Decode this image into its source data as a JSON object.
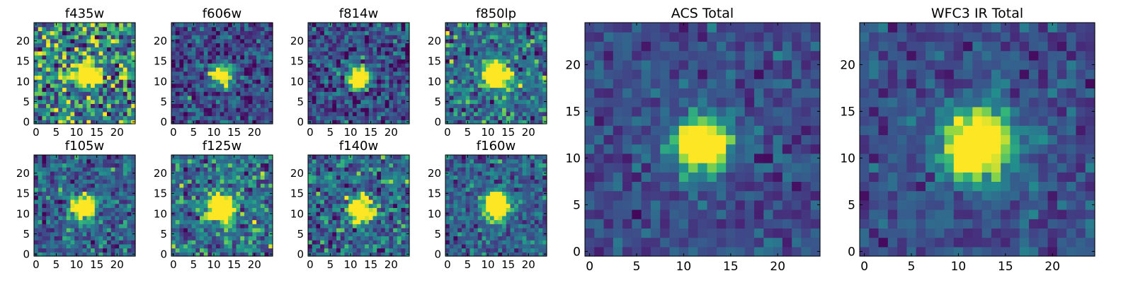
{
  "chart_data": [
    {
      "type": "heatmap",
      "title": "f435w",
      "xlim": [
        -0.5,
        24.5
      ],
      "ylim": [
        -0.5,
        24.5
      ],
      "xticks": [
        0,
        5,
        10,
        15,
        20
      ],
      "yticks": [
        0,
        5,
        10,
        15,
        20
      ],
      "xticklabels": [
        "0",
        "5",
        "10",
        "15",
        "20"
      ],
      "yticklabels": [
        "0",
        "5",
        "10",
        "15",
        "20"
      ],
      "source_center": [
        12,
        11.5
      ],
      "source_sigma": 2.4,
      "noise_level": 0.55,
      "background": 0.52,
      "colormap": "viridis"
    },
    {
      "type": "heatmap",
      "title": "f606w",
      "xlim": [
        -0.5,
        24.5
      ],
      "ylim": [
        -0.5,
        24.5
      ],
      "xticks": [
        0,
        5,
        10,
        15,
        20
      ],
      "yticks": [
        0,
        5,
        10,
        15,
        20
      ],
      "xticklabels": [
        "0",
        "5",
        "10",
        "15",
        "20"
      ],
      "yticklabels": [
        "0",
        "5",
        "10",
        "15",
        "20"
      ],
      "source_center": [
        12,
        11.5
      ],
      "source_sigma": 1.8,
      "noise_level": 0.35,
      "background": 0.28,
      "colormap": "viridis"
    },
    {
      "type": "heatmap",
      "title": "f814w",
      "xlim": [
        -0.5,
        24.5
      ],
      "ylim": [
        -0.5,
        24.5
      ],
      "xticks": [
        0,
        5,
        10,
        15,
        20
      ],
      "yticks": [
        0,
        5,
        10,
        15,
        20
      ],
      "xticklabels": [
        "0",
        "5",
        "10",
        "15",
        "20"
      ],
      "yticklabels": [
        "0",
        "5",
        "10",
        "15",
        "20"
      ],
      "source_center": [
        12,
        11
      ],
      "source_sigma": 1.9,
      "noise_level": 0.35,
      "background": 0.28,
      "colormap": "viridis"
    },
    {
      "type": "heatmap",
      "title": "f850lp",
      "xlim": [
        -0.5,
        24.5
      ],
      "ylim": [
        -0.5,
        24.5
      ],
      "xticks": [
        0,
        5,
        10,
        15,
        20
      ],
      "yticks": [
        0,
        5,
        10,
        15,
        20
      ],
      "xticklabels": [
        "0",
        "5",
        "10",
        "15",
        "20"
      ],
      "yticklabels": [
        "0",
        "5",
        "10",
        "15",
        "20"
      ],
      "source_center": [
        12,
        11.5
      ],
      "source_sigma": 2.2,
      "noise_level": 0.4,
      "background": 0.45,
      "colormap": "viridis"
    },
    {
      "type": "heatmap",
      "title": "f105w",
      "xlim": [
        -0.5,
        24.5
      ],
      "ylim": [
        -0.5,
        24.5
      ],
      "xticks": [
        0,
        5,
        10,
        15,
        20
      ],
      "yticks": [
        0,
        5,
        10,
        15,
        20
      ],
      "xticklabels": [
        "0",
        "5",
        "10",
        "15",
        "20"
      ],
      "yticklabels": [
        "0",
        "5",
        "10",
        "15",
        "20"
      ],
      "source_center": [
        12,
        11.5
      ],
      "source_sigma": 2.0,
      "noise_level": 0.35,
      "background": 0.38,
      "colormap": "viridis"
    },
    {
      "type": "heatmap",
      "title": "f125w",
      "xlim": [
        -0.5,
        24.5
      ],
      "ylim": [
        -0.5,
        24.5
      ],
      "xticks": [
        0,
        5,
        10,
        15,
        20
      ],
      "yticks": [
        0,
        5,
        10,
        15,
        20
      ],
      "xticklabels": [
        "0",
        "5",
        "10",
        "15",
        "20"
      ],
      "yticklabels": [
        "0",
        "5",
        "10",
        "15",
        "20"
      ],
      "source_center": [
        12,
        11.5
      ],
      "source_sigma": 2.4,
      "noise_level": 0.4,
      "background": 0.45,
      "colormap": "viridis"
    },
    {
      "type": "heatmap",
      "title": "f140w",
      "xlim": [
        -0.5,
        24.5
      ],
      "ylim": [
        -0.5,
        24.5
      ],
      "xticks": [
        0,
        5,
        10,
        15,
        20
      ],
      "yticks": [
        0,
        5,
        10,
        15,
        20
      ],
      "xticklabels": [
        "0",
        "5",
        "10",
        "15",
        "20"
      ],
      "yticklabels": [
        "0",
        "5",
        "10",
        "15",
        "20"
      ],
      "source_center": [
        12.5,
        11
      ],
      "source_sigma": 2.1,
      "noise_level": 0.4,
      "background": 0.42,
      "colormap": "viridis"
    },
    {
      "type": "heatmap",
      "title": "f160w",
      "xlim": [
        -0.5,
        24.5
      ],
      "ylim": [
        -0.5,
        24.5
      ],
      "xticks": [
        0,
        5,
        10,
        15,
        20
      ],
      "yticks": [
        0,
        5,
        10,
        15,
        20
      ],
      "xticklabels": [
        "0",
        "5",
        "10",
        "15",
        "20"
      ],
      "yticklabels": [
        "0",
        "5",
        "10",
        "15",
        "20"
      ],
      "source_center": [
        12,
        12
      ],
      "source_sigma": 2.3,
      "noise_level": 0.3,
      "background": 0.38,
      "colormap": "viridis"
    },
    {
      "type": "heatmap",
      "title": "ACS Total",
      "xlim": [
        -0.5,
        24.5
      ],
      "ylim": [
        -0.5,
        24.5
      ],
      "xticks": [
        0,
        5,
        10,
        15,
        20
      ],
      "yticks": [
        0,
        5,
        10,
        15,
        20
      ],
      "xticklabels": [
        "0",
        "5",
        "10",
        "15",
        "20"
      ],
      "yticklabels": [
        "0",
        "5",
        "10",
        "15",
        "20"
      ],
      "source_center": [
        12,
        11.5
      ],
      "source_sigma": 2.0,
      "noise_level": 0.22,
      "background": 0.3,
      "colormap": "viridis"
    },
    {
      "type": "heatmap",
      "title": "WFC3 IR Total",
      "xlim": [
        -0.5,
        24.5
      ],
      "ylim": [
        -0.5,
        24.5
      ],
      "xticks": [
        0,
        5,
        10,
        15,
        20
      ],
      "yticks": [
        0,
        5,
        10,
        15,
        20
      ],
      "xticklabels": [
        "0",
        "5",
        "10",
        "15",
        "20"
      ],
      "yticklabels": [
        "0",
        "5",
        "10",
        "15",
        "20"
      ],
      "source_center": [
        12,
        11.5
      ],
      "source_sigma": 2.6,
      "noise_level": 0.22,
      "background": 0.3,
      "colormap": "viridis"
    }
  ]
}
